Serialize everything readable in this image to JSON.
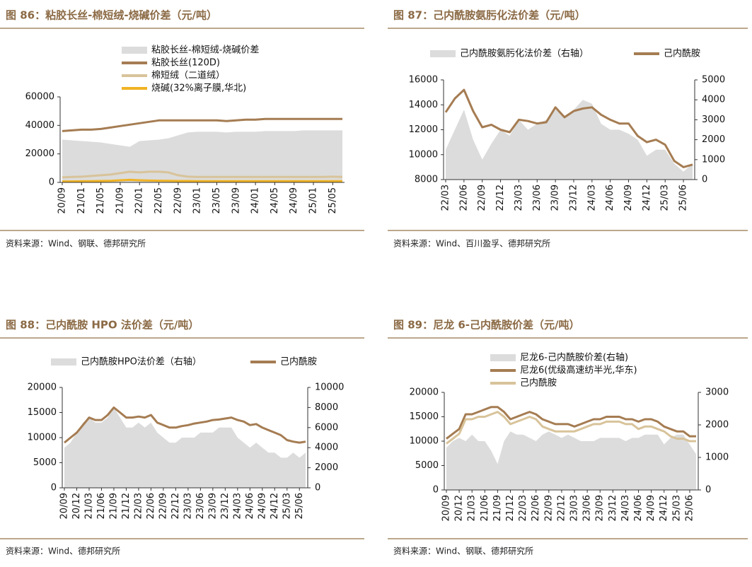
{
  "chart_data": [
    {
      "type": "combo",
      "title": "图 86：粘胶长丝-棉短绒-烧碱价差（元/吨）",
      "source": "资料来源：Wind、钢联、德邦研究所",
      "categories": [
        "20/09",
        null,
        "21/01",
        null,
        "21/05",
        null,
        "21/09",
        null,
        "22/01",
        null,
        "22/05",
        null,
        "22/09",
        null,
        "23/01",
        null,
        "23/05",
        null,
        "23/09",
        null,
        "24/01",
        null,
        "24/05",
        null,
        "24/09",
        null,
        "25/01",
        null,
        "25/05",
        null
      ],
      "ylim": [
        0,
        60000
      ],
      "yticks": [
        0,
        20000,
        40000,
        60000
      ],
      "series": [
        {
          "name": "粘胶长丝-棉短绒-烧碱价差",
          "type": "area",
          "color": "#dcdcdc",
          "values": [
            30000,
            29500,
            29000,
            28500,
            28000,
            27000,
            26000,
            25000,
            29000,
            29500,
            30000,
            31000,
            33000,
            35000,
            35500,
            35500,
            35500,
            35000,
            35500,
            35500,
            35500,
            36000,
            36000,
            36000,
            36000,
            36500,
            36500,
            36500,
            36500,
            36500
          ]
        },
        {
          "name": "粘胶长丝(120D)",
          "type": "line",
          "color": "#a57c52",
          "values": [
            36000,
            36500,
            37000,
            37000,
            37500,
            38500,
            39500,
            40500,
            41500,
            42500,
            43500,
            43500,
            43500,
            43500,
            43500,
            43500,
            43500,
            43000,
            43500,
            44000,
            44000,
            44500,
            44500,
            44500,
            44500,
            44500,
            44500,
            44500,
            44500,
            44500
          ]
        },
        {
          "name": "棉短绒（二道绒）",
          "type": "line",
          "color": "#d8c39a",
          "values": [
            3500,
            3800,
            4000,
            4500,
            5000,
            5500,
            6500,
            7500,
            7000,
            7500,
            7500,
            7000,
            5000,
            4000,
            3800,
            3800,
            3800,
            3800,
            3800,
            3800,
            3800,
            3800,
            3800,
            3800,
            3800,
            3800,
            3800,
            3800,
            4000,
            3800
          ]
        },
        {
          "name": "烧碱(32%离子膜,华北)",
          "type": "line",
          "color": "#f0b323",
          "values": [
            700,
            700,
            800,
            900,
            1000,
            1100,
            1500,
            1800,
            1500,
            1300,
            1200,
            1100,
            1000,
            1000,
            900,
            900,
            900,
            900,
            900,
            900,
            900,
            900,
            900,
            900,
            900,
            900,
            900,
            900,
            900,
            900
          ]
        }
      ]
    },
    {
      "type": "combo",
      "title": "图 87：己内酰胺氨肟化法价差（元/吨）",
      "source": "资料来源：Wind、百川盈孚、德邦研究所",
      "categories": [
        "22/03",
        null,
        "22/06",
        null,
        "22/09",
        null,
        "22/12",
        null,
        "23/03",
        null,
        "23/06",
        null,
        "23/09",
        null,
        "23/12",
        null,
        "24/03",
        null,
        "24/06",
        null,
        "24/09",
        null,
        "24/12",
        null,
        "25/03",
        null,
        "25/06",
        null
      ],
      "ylim": [
        8000,
        16000
      ],
      "yticks": [
        8000,
        10000,
        12000,
        14000,
        16000
      ],
      "y2lim": [
        0,
        5000
      ],
      "y2ticks": [
        0,
        1000,
        2000,
        3000,
        4000,
        5000
      ],
      "series": [
        {
          "name": "己内酰胺氨肟化法价差（右轴）",
          "type": "area",
          "axis": "y2",
          "color": "#dcdcdc",
          "values": [
            1500,
            2500,
            3500,
            2000,
            1000,
            1800,
            2500,
            2200,
            3000,
            2500,
            2800,
            3000,
            3500,
            3200,
            3500,
            4000,
            3800,
            2800,
            2500,
            2500,
            2300,
            2000,
            1200,
            1500,
            1500,
            800,
            400,
            800
          ]
        },
        {
          "name": "己内酰胺",
          "type": "line",
          "color": "#a57c52",
          "values": [
            13400,
            14500,
            15200,
            13500,
            12200,
            12400,
            12000,
            11800,
            12800,
            12700,
            12500,
            12600,
            13800,
            13000,
            13500,
            13700,
            13800,
            13200,
            12800,
            12500,
            12500,
            11500,
            11000,
            11200,
            10800,
            9500,
            9000,
            9200
          ]
        }
      ]
    },
    {
      "type": "combo",
      "title": "图 88：己内酰胺 HPO 法价差（元/吨）",
      "source": "资料来源：Wind、德邦研究所",
      "categories": [
        "20/09",
        null,
        "20/12",
        null,
        "21/03",
        null,
        "21/06",
        null,
        "21/09",
        null,
        "21/12",
        null,
        "22/03",
        null,
        "22/06",
        null,
        "22/09",
        null,
        "22/12",
        null,
        "23/03",
        null,
        "23/06",
        null,
        "23/09",
        null,
        "23/12",
        null,
        "24/03",
        null,
        "24/06",
        null,
        "24/09",
        null,
        "24/12",
        null,
        "25/03",
        null,
        "25/06",
        null
      ],
      "ylim": [
        0,
        20000
      ],
      "yticks": [
        0,
        5000,
        10000,
        15000,
        20000
      ],
      "y2lim": [
        0,
        10000
      ],
      "y2ticks": [
        0,
        2000,
        4000,
        6000,
        8000,
        10000
      ],
      "series": [
        {
          "name": "己内酰胺HPO法价差（右轴）",
          "type": "area",
          "axis": "y2",
          "color": "#dcdcdc",
          "values": [
            4000,
            4500,
            5500,
            6500,
            7000,
            6500,
            6500,
            7000,
            8000,
            7000,
            6000,
            6000,
            6500,
            6000,
            6500,
            5500,
            5000,
            4500,
            4500,
            5000,
            5000,
            5000,
            5500,
            5500,
            5500,
            6000,
            6000,
            6000,
            5000,
            4500,
            4000,
            4500,
            4000,
            3500,
            3500,
            3000,
            3000,
            3500,
            3000,
            3500
          ]
        },
        {
          "name": "己内酰胺",
          "type": "line",
          "color": "#a57c52",
          "values": [
            9000,
            10000,
            11000,
            12500,
            14000,
            13500,
            13500,
            14500,
            16000,
            15000,
            14000,
            14000,
            14200,
            14000,
            14500,
            13000,
            12500,
            12000,
            12000,
            12300,
            12500,
            12800,
            13000,
            13200,
            13500,
            13600,
            13800,
            14000,
            13500,
            13200,
            12500,
            12700,
            12000,
            11500,
            11000,
            10500,
            9500,
            9200,
            9000,
            9200
          ]
        }
      ]
    },
    {
      "type": "combo",
      "title": "图 89：尼龙 6-己内酰胺价差（元/吨）",
      "source": "资料来源：Wind、钢联、德邦研究所",
      "categories": [
        "20/09",
        null,
        "20/12",
        null,
        "21/03",
        null,
        "21/06",
        null,
        "21/09",
        null,
        "21/12",
        null,
        "22/03",
        null,
        "22/06",
        null,
        "22/09",
        null,
        "22/12",
        null,
        "23/03",
        null,
        "23/06",
        null,
        "23/09",
        null,
        "23/12",
        null,
        "24/03",
        null,
        "24/06",
        null,
        "24/09",
        null,
        "24/12",
        null,
        "25/03",
        null,
        "25/06",
        null
      ],
      "ylim": [
        0,
        20000
      ],
      "yticks": [
        0,
        5000,
        10000,
        15000,
        20000
      ],
      "y2lim": [
        0,
        3000
      ],
      "y2ticks": [
        0,
        1000,
        2000,
        3000
      ],
      "series": [
        {
          "name": "尼龙6-己内酰胺价差(右轴)",
          "type": "area",
          "axis": "y2",
          "color": "#dcdcdc",
          "values": [
            1300,
            1500,
            1600,
            1500,
            1700,
            1500,
            1500,
            1200,
            800,
            1500,
            1800,
            1700,
            1700,
            1600,
            1500,
            1700,
            1800,
            1700,
            1600,
            1700,
            1600,
            1500,
            1500,
            1500,
            1600,
            1600,
            1600,
            1600,
            1500,
            1600,
            1600,
            1700,
            1700,
            1700,
            1400,
            1600,
            1700,
            1700,
            1400,
            1100
          ]
        },
        {
          "name": "尼龙6(优级高速纺半光,华东)",
          "type": "line",
          "color": "#a57c52",
          "values": [
            10500,
            11500,
            12500,
            15500,
            15500,
            16000,
            16500,
            17000,
            17000,
            16000,
            14500,
            15000,
            15500,
            16000,
            15500,
            14500,
            14000,
            13500,
            13500,
            13500,
            13000,
            13500,
            14000,
            14500,
            14500,
            15000,
            15000,
            15000,
            14500,
            14500,
            14000,
            14500,
            14500,
            14000,
            13000,
            12500,
            12000,
            12000,
            11000,
            11000
          ]
        },
        {
          "name": "己内酰胺",
          "type": "line",
          "color": "#d8c39a",
          "values": [
            9500,
            10500,
            11500,
            14500,
            14500,
            15000,
            15000,
            15500,
            16000,
            15000,
            13500,
            14000,
            14500,
            15000,
            14500,
            13000,
            12500,
            12000,
            12000,
            12000,
            12000,
            12500,
            13000,
            13500,
            13500,
            14000,
            14000,
            14000,
            13500,
            13500,
            12500,
            13000,
            13000,
            12500,
            12000,
            11000,
            10500,
            10500,
            10000,
            10000
          ]
        }
      ]
    }
  ]
}
